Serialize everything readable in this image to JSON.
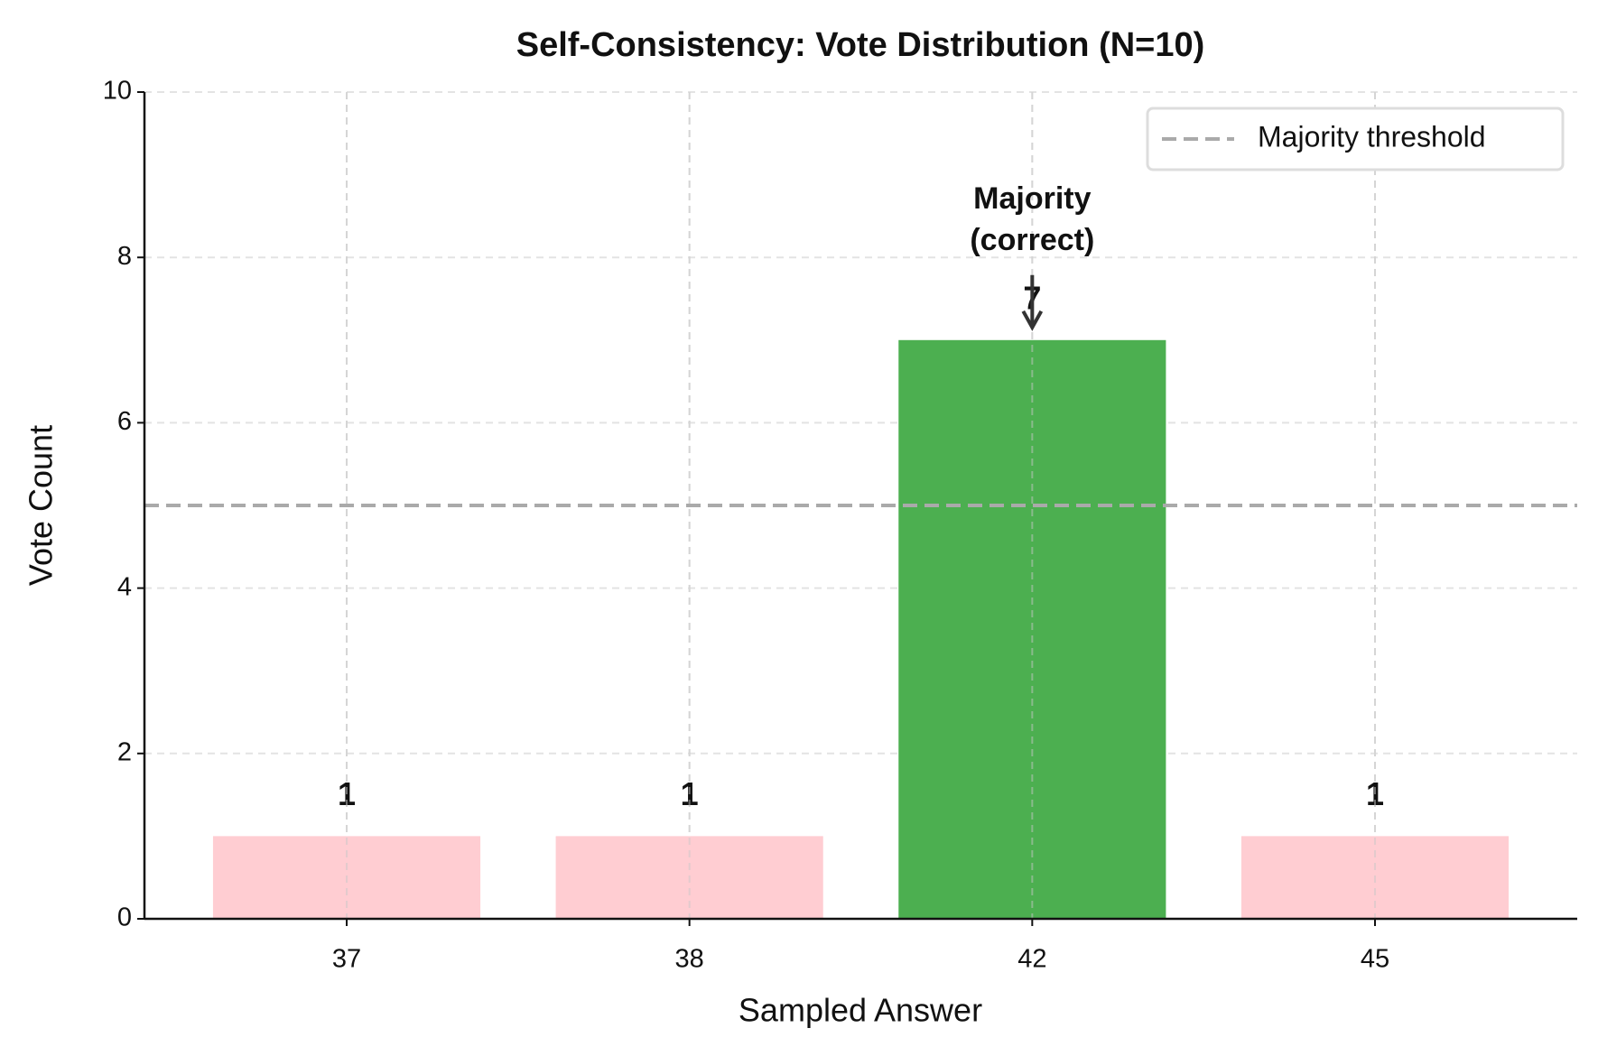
{
  "chart_data": {
    "type": "bar",
    "title": "Self-Consistency: Vote Distribution (N=10)",
    "xlabel": "Sampled Answer",
    "ylabel": "Vote Count",
    "categories": [
      "37",
      "38",
      "42",
      "45"
    ],
    "values": [
      1,
      1,
      7,
      1
    ],
    "colors": [
      "#ffcdd2",
      "#ffcdd2",
      "#4caf50",
      "#ffcdd2"
    ],
    "ylim": [
      0,
      10
    ],
    "yticks": [
      0,
      2,
      4,
      6,
      8,
      10
    ],
    "grid": true,
    "threshold": {
      "value": 5,
      "label": "Majority threshold",
      "color": "#aaaaaa"
    },
    "annotation": [
      "Majority",
      "(correct)"
    ],
    "legend": "upper right"
  }
}
